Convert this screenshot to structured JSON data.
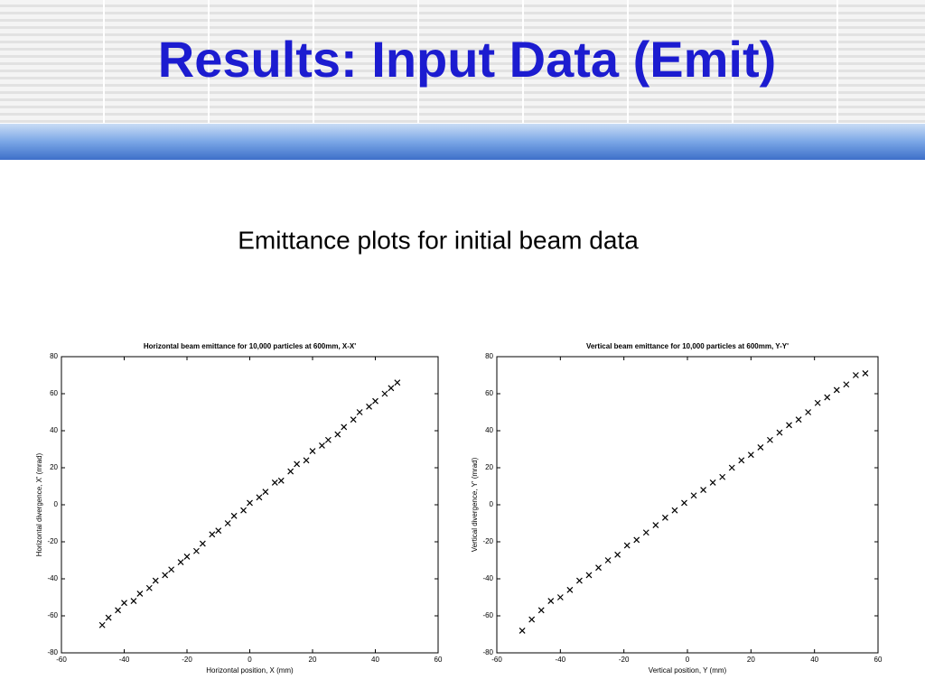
{
  "slide": {
    "title": "Results: Input Data (Emit)",
    "subtitle": "Emittance plots for initial beam data"
  },
  "chart_data": [
    {
      "type": "scatter",
      "title": "Horizontal beam emittance for 10,000 particles at 600mm, X-X'",
      "x_label": "Horizontal position, X (mm)",
      "y_label": "Horizontal divergence, X' (mrad)",
      "marker": "x",
      "color": "#000000",
      "grid": false,
      "xlim": [
        -60,
        60
      ],
      "xticks": [
        -60,
        -40,
        -20,
        0,
        20,
        40,
        60
      ],
      "ylim": [
        -80,
        80
      ],
      "yticks": [
        -80,
        -60,
        -40,
        -20,
        0,
        20,
        40,
        60,
        80
      ],
      "x": [
        -47,
        -45,
        -42,
        -40,
        -37,
        -35,
        -32,
        -30,
        -27,
        -25,
        -22,
        -20,
        -17,
        -15,
        -12,
        -10,
        -7,
        -5,
        -2,
        0,
        3,
        5,
        8,
        10,
        13,
        15,
        18,
        20,
        23,
        25,
        28,
        30,
        33,
        35,
        38,
        40,
        43,
        45,
        47
      ],
      "y": [
        -65,
        -61,
        -57,
        -53,
        -52,
        -48,
        -45,
        -41,
        -38,
        -35,
        -31,
        -28,
        -25,
        -21,
        -16,
        -14,
        -10,
        -6,
        -3,
        1,
        4,
        7,
        12,
        13,
        18,
        22,
        24,
        29,
        32,
        35,
        38,
        42,
        46,
        50,
        53,
        56,
        60,
        63,
        66
      ]
    },
    {
      "type": "scatter",
      "title": "Vertical beam emittance for 10,000 particles at 600mm, Y-Y'",
      "x_label": "Vertical position, Y (mm)",
      "y_label": "Vertical divergence, Y' (mrad)",
      "marker": "x",
      "color": "#000000",
      "grid": false,
      "xlim": [
        -60,
        60
      ],
      "xticks": [
        -60,
        -40,
        -20,
        0,
        20,
        40,
        60
      ],
      "ylim": [
        -80,
        80
      ],
      "yticks": [
        -80,
        -60,
        -40,
        -20,
        0,
        20,
        40,
        60,
        80
      ],
      "x": [
        -52,
        -49,
        -46,
        -43,
        -40,
        -37,
        -34,
        -31,
        -28,
        -25,
        -22,
        -19,
        -16,
        -13,
        -10,
        -7,
        -4,
        -1,
        2,
        5,
        8,
        11,
        14,
        17,
        20,
        23,
        26,
        29,
        32,
        35,
        38,
        41,
        44,
        47,
        50,
        53,
        56
      ],
      "y": [
        -68,
        -62,
        -57,
        -52,
        -50,
        -46,
        -41,
        -38,
        -34,
        -30,
        -27,
        -22,
        -19,
        -15,
        -11,
        -7,
        -3,
        1,
        5,
        8,
        12,
        15,
        20,
        24,
        27,
        31,
        35,
        39,
        43,
        46,
        50,
        55,
        58,
        62,
        65,
        70,
        71
      ]
    }
  ]
}
